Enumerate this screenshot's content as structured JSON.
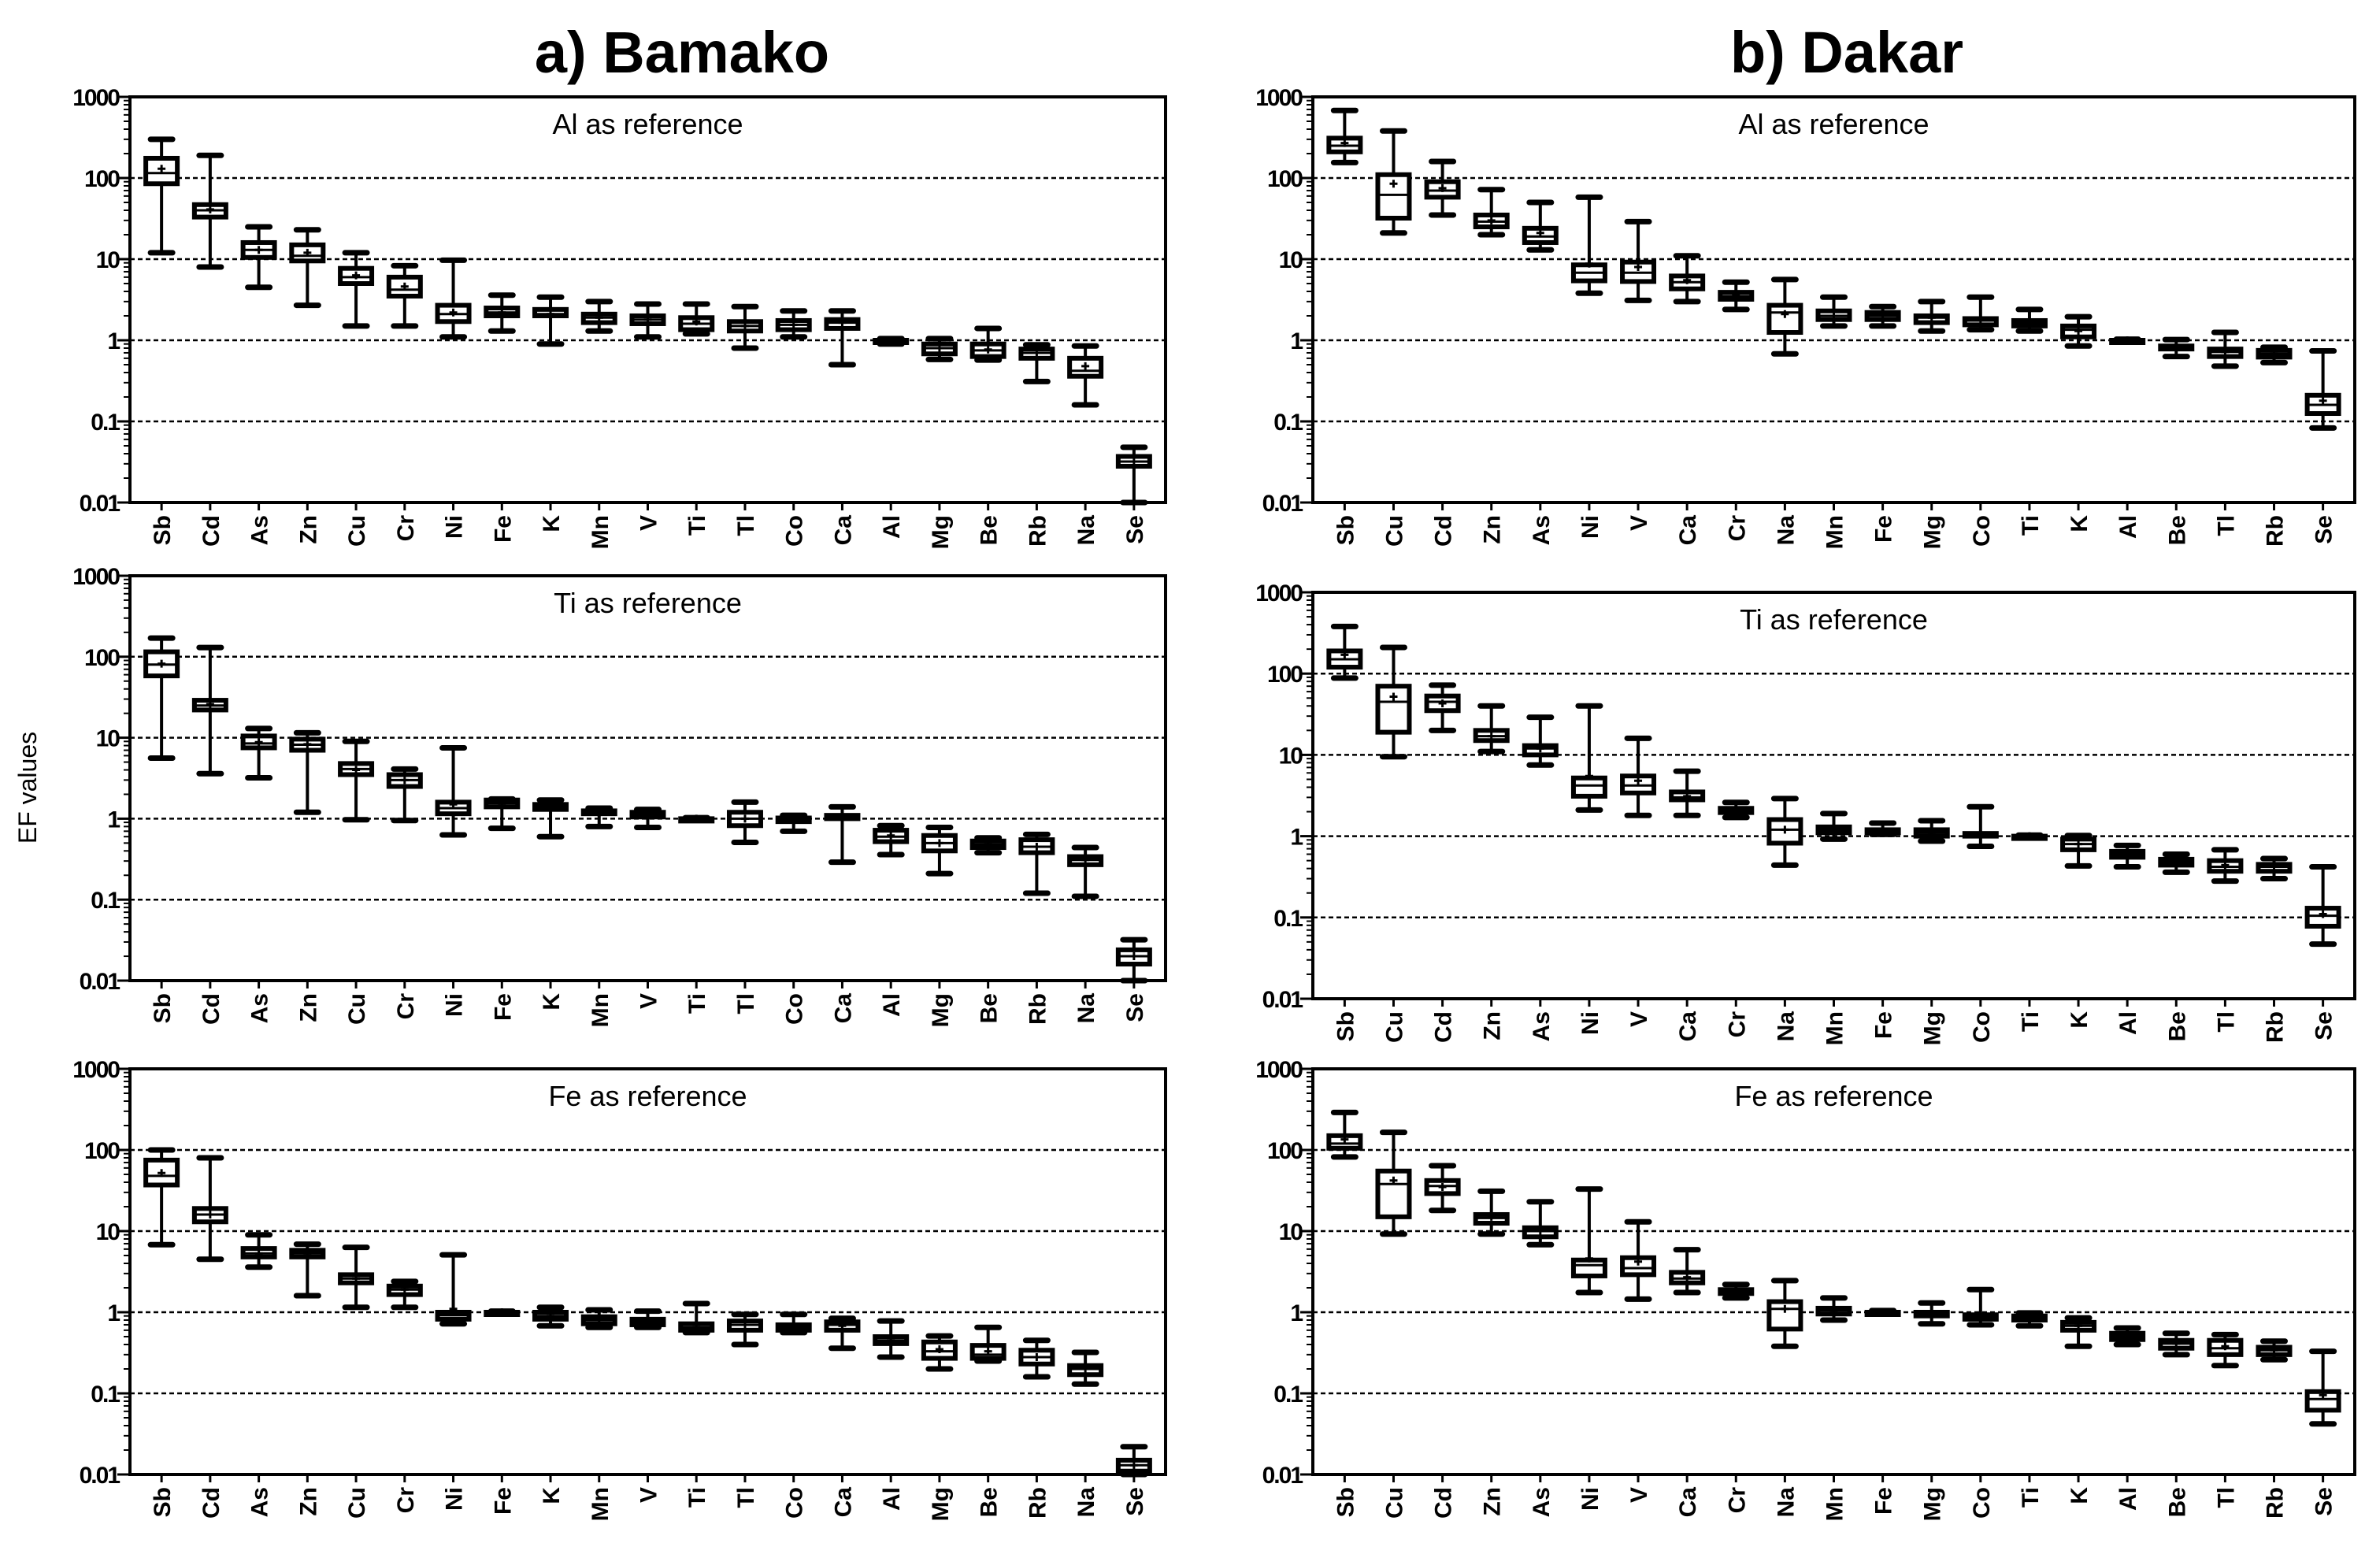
{
  "figure": {
    "titles": [
      "a) Bamako",
      "b) Dakar"
    ],
    "ylabel": "EF values",
    "yticks": [
      "1000",
      "100",
      "10",
      "1",
      "0.1",
      "0.01"
    ],
    "colors": {
      "box": "#000000",
      "fill": "#ffffff",
      "grid": "#000000"
    }
  },
  "chart_data": [
    {
      "type": "boxplot",
      "site": "Bamako",
      "title": "Al as reference",
      "ylabel": "EF values",
      "yscale": "log",
      "ylim": [
        0.01,
        1000
      ],
      "grid": "dashed at 0.1, 1, 10, 100",
      "stats_order": [
        "min",
        "q1",
        "median",
        "q3",
        "max",
        "mean"
      ],
      "categories": [
        "Sb",
        "Cd",
        "As",
        "Zn",
        "Cu",
        "Cr",
        "Ni",
        "Fe",
        "K",
        "Mn",
        "V",
        "Ti",
        "Tl",
        "Co",
        "Ca",
        "Al",
        "Mg",
        "Be",
        "Rb",
        "Na",
        "Se"
      ],
      "values": [
        [
          12,
          85,
          115,
          175,
          300,
          130
        ],
        [
          8,
          33,
          40,
          47,
          190,
          41
        ],
        [
          4.5,
          10.5,
          13,
          16,
          25,
          13
        ],
        [
          2.7,
          9.5,
          11,
          15,
          23,
          12
        ],
        [
          1.5,
          5,
          6,
          7.7,
          12,
          6.3
        ],
        [
          1.5,
          3.5,
          4.2,
          6,
          8.3,
          4.6
        ],
        [
          1.1,
          1.7,
          2.1,
          2.7,
          9.7,
          2.2
        ],
        [
          1.3,
          2.0,
          2.2,
          2.5,
          3.6,
          2.2
        ],
        [
          0.9,
          2.0,
          2.1,
          2.4,
          3.4,
          2.1
        ],
        [
          1.3,
          1.65,
          1.9,
          2.1,
          3.0,
          1.9
        ],
        [
          1.1,
          1.6,
          1.8,
          2.0,
          2.8,
          1.8
        ],
        [
          1.2,
          1.35,
          1.6,
          1.9,
          2.8,
          1.7
        ],
        [
          0.8,
          1.3,
          1.5,
          1.7,
          2.6,
          1.5
        ],
        [
          1.1,
          1.35,
          1.55,
          1.75,
          2.3,
          1.55
        ],
        [
          0.5,
          1.4,
          1.65,
          1.8,
          2.3,
          1.65
        ],
        [
          0.9,
          1,
          1,
          1,
          1.05,
          1
        ],
        [
          0.58,
          0.68,
          0.8,
          0.9,
          1.05,
          0.8
        ],
        [
          0.57,
          0.63,
          0.75,
          0.9,
          1.4,
          0.77
        ],
        [
          0.31,
          0.6,
          0.7,
          0.78,
          0.88,
          0.7
        ],
        [
          0.16,
          0.36,
          0.42,
          0.6,
          0.85,
          0.48
        ],
        [
          0.01,
          0.028,
          0.032,
          0.037,
          0.048,
          0.032
        ]
      ]
    },
    {
      "type": "boxplot",
      "site": "Dakar",
      "title": "Al as reference",
      "ylabel": "",
      "yscale": "log",
      "ylim": [
        0.01,
        1000
      ],
      "grid": "dashed at 0.1, 1, 10, 100",
      "stats_order": [
        "min",
        "q1",
        "median",
        "q3",
        "max",
        "mean"
      ],
      "categories": [
        "Sb",
        "Cu",
        "Cd",
        "Zn",
        "As",
        "Ni",
        "V",
        "Ca",
        "Cr",
        "Na",
        "Mn",
        "Fe",
        "Mg",
        "Co",
        "Ti",
        "K",
        "Al",
        "Be",
        "Tl",
        "Rb",
        "Se"
      ],
      "values": [
        [
          155,
          210,
          250,
          310,
          680,
          270
        ],
        [
          21,
          32,
          62,
          110,
          380,
          85
        ],
        [
          35,
          58,
          70,
          90,
          160,
          75
        ],
        [
          20,
          25,
          29,
          35,
          72,
          30
        ],
        [
          13,
          16,
          19,
          24,
          50,
          21
        ],
        [
          3.8,
          5.4,
          6.8,
          8.5,
          58,
          8.8
        ],
        [
          3.1,
          5.3,
          6.8,
          9.2,
          29,
          8
        ],
        [
          3.0,
          4.3,
          5.2,
          6.2,
          11,
          5.5
        ],
        [
          2.4,
          3.2,
          3.5,
          3.9,
          5.2,
          3.6
        ],
        [
          0.68,
          1.25,
          2.2,
          2.7,
          5.6,
          2.1
        ],
        [
          1.5,
          1.8,
          2.0,
          2.3,
          3.4,
          2.0
        ],
        [
          1.5,
          1.8,
          2.0,
          2.2,
          2.6,
          2.0
        ],
        [
          1.3,
          1.65,
          1.9,
          2.0,
          3.0,
          1.9
        ],
        [
          1.35,
          1.55,
          1.75,
          1.85,
          3.4,
          1.8
        ],
        [
          1.3,
          1.5,
          1.6,
          1.75,
          2.4,
          1.6
        ],
        [
          0.85,
          1.1,
          1.35,
          1.5,
          1.95,
          1.3
        ],
        [
          0.95,
          1,
          1,
          1,
          1.03,
          1
        ],
        [
          0.63,
          0.78,
          0.82,
          0.85,
          1.02,
          0.82
        ],
        [
          0.48,
          0.63,
          0.72,
          0.78,
          1.25,
          0.72
        ],
        [
          0.53,
          0.62,
          0.68,
          0.75,
          0.82,
          0.68
        ],
        [
          0.083,
          0.125,
          0.16,
          0.21,
          0.74,
          0.18
        ]
      ]
    },
    {
      "type": "boxplot",
      "site": "Bamako",
      "title": "Ti as reference",
      "ylabel": "EF values",
      "yscale": "log",
      "ylim": [
        0.01,
        1000
      ],
      "grid": "dashed at 0.1, 1, 10, 100",
      "stats_order": [
        "min",
        "q1",
        "median",
        "q3",
        "max",
        "mean"
      ],
      "categories": [
        "Sb",
        "Cd",
        "As",
        "Zn",
        "Cu",
        "Cr",
        "Ni",
        "Fe",
        "K",
        "Mn",
        "V",
        "Ti",
        "Tl",
        "Co",
        "Ca",
        "Al",
        "Mg",
        "Be",
        "Rb",
        "Na",
        "Se"
      ],
      "values": [
        [
          5.6,
          58,
          80,
          115,
          170,
          82
        ],
        [
          3.6,
          22,
          25,
          29,
          130,
          26
        ],
        [
          3.2,
          7.5,
          8.5,
          10.5,
          13,
          8.8
        ],
        [
          1.2,
          7,
          8.2,
          9.6,
          11.5,
          8.3
        ],
        [
          0.97,
          3.5,
          4.1,
          4.8,
          9,
          4
        ],
        [
          0.95,
          2.5,
          3.0,
          3.5,
          4.1,
          3.0
        ],
        [
          0.63,
          1.15,
          1.35,
          1.6,
          7.5,
          1.5
        ],
        [
          0.76,
          1.4,
          1.55,
          1.7,
          1.75,
          1.55
        ],
        [
          0.6,
          1.3,
          1.4,
          1.5,
          1.7,
          1.4
        ],
        [
          0.8,
          1.15,
          1.2,
          1.25,
          1.35,
          1.2
        ],
        [
          0.78,
          1.05,
          1.1,
          1.2,
          1.3,
          1.12
        ],
        [
          0.97,
          1,
          1,
          1,
          1.03,
          1
        ],
        [
          0.51,
          0.82,
          1.0,
          1.2,
          1.6,
          1.0
        ],
        [
          0.7,
          0.92,
          0.98,
          1.02,
          1.1,
          0.97
        ],
        [
          0.29,
          1.0,
          1.05,
          1.1,
          1.4,
          1.0
        ],
        [
          0.36,
          0.52,
          0.6,
          0.72,
          0.82,
          0.62
        ],
        [
          0.21,
          0.4,
          0.5,
          0.62,
          0.78,
          0.5
        ],
        [
          0.38,
          0.44,
          0.48,
          0.53,
          0.58,
          0.48
        ],
        [
          0.12,
          0.38,
          0.45,
          0.55,
          0.64,
          0.45
        ],
        [
          0.11,
          0.27,
          0.31,
          0.34,
          0.44,
          0.31
        ],
        [
          0.01,
          0.016,
          0.02,
          0.024,
          0.032,
          0.02
        ]
      ]
    },
    {
      "type": "boxplot",
      "site": "Dakar",
      "title": "Ti as reference",
      "ylabel": "",
      "yscale": "log",
      "ylim": [
        0.01,
        1000
      ],
      "grid": "dashed at 0.1, 1, 10, 100",
      "stats_order": [
        "min",
        "q1",
        "median",
        "q3",
        "max",
        "mean"
      ],
      "categories": [
        "Sb",
        "Cu",
        "Cd",
        "Zn",
        "As",
        "Ni",
        "V",
        "Ca",
        "Cr",
        "Na",
        "Mn",
        "Fe",
        "Mg",
        "Co",
        "Ti",
        "K",
        "Al",
        "Be",
        "Tl",
        "Rb",
        "Se"
      ],
      "values": [
        [
          88,
          120,
          150,
          190,
          380,
          170
        ],
        [
          9.5,
          19,
          45,
          70,
          210,
          52
        ],
        [
          20,
          35,
          45,
          53,
          72,
          43
        ],
        [
          11,
          15,
          17,
          20,
          40,
          17
        ],
        [
          7.5,
          10,
          12,
          13,
          29,
          12
        ],
        [
          2.1,
          3.1,
          4.2,
          5.2,
          40,
          5.5
        ],
        [
          1.8,
          3.4,
          4.2,
          5.5,
          16,
          4.8
        ],
        [
          1.8,
          2.8,
          3.0,
          3.5,
          6.3,
          3.1
        ],
        [
          1.7,
          1.95,
          2.05,
          2.2,
          2.6,
          2.05
        ],
        [
          0.44,
          0.82,
          1.2,
          1.6,
          2.9,
          1.2
        ],
        [
          0.92,
          1.1,
          1.2,
          1.3,
          1.9,
          1.2
        ],
        [
          1.05,
          1.1,
          1.15,
          1.2,
          1.45,
          1.15
        ],
        [
          0.87,
          1.0,
          1.1,
          1.2,
          1.55,
          1.1
        ],
        [
          0.75,
          1.0,
          1.05,
          1.08,
          2.3,
          1.05
        ],
        [
          0.97,
          1,
          1,
          1,
          1.03,
          1
        ],
        [
          0.43,
          0.68,
          0.8,
          0.92,
          1.02,
          0.8
        ],
        [
          0.42,
          0.55,
          0.6,
          0.65,
          0.77,
          0.6
        ],
        [
          0.36,
          0.44,
          0.48,
          0.52,
          0.6,
          0.48
        ],
        [
          0.28,
          0.37,
          0.42,
          0.5,
          0.68,
          0.44
        ],
        [
          0.3,
          0.37,
          0.42,
          0.45,
          0.53,
          0.42
        ],
        [
          0.047,
          0.078,
          0.105,
          0.13,
          0.42,
          0.11
        ]
      ]
    },
    {
      "type": "boxplot",
      "site": "Bamako",
      "title": "Fe as reference",
      "ylabel": "EF values",
      "yscale": "log",
      "ylim": [
        0.01,
        1000
      ],
      "grid": "dashed at 0.1, 1, 10, 100",
      "stats_order": [
        "min",
        "q1",
        "median",
        "q3",
        "max",
        "mean"
      ],
      "categories": [
        "Sb",
        "Cd",
        "As",
        "Zn",
        "Cu",
        "Cr",
        "Ni",
        "Fe",
        "K",
        "Mn",
        "V",
        "Ti",
        "Tl",
        "Co",
        "Ca",
        "Al",
        "Mg",
        "Be",
        "Rb",
        "Na",
        "Se"
      ],
      "values": [
        [
          6.8,
          37,
          48,
          75,
          100,
          52
        ],
        [
          4.5,
          13,
          16,
          19,
          80,
          16
        ],
        [
          3.6,
          4.8,
          5.3,
          6.1,
          9,
          5.3
        ],
        [
          1.6,
          4.8,
          5.3,
          5.8,
          6.9,
          5.3
        ],
        [
          1.15,
          2.3,
          2.6,
          2.9,
          6.3,
          2.6
        ],
        [
          1.15,
          1.65,
          1.9,
          2.1,
          2.4,
          1.9
        ],
        [
          0.72,
          0.82,
          0.92,
          1.0,
          5.1,
          1.1
        ],
        [
          0.95,
          1,
          1,
          1,
          1.03,
          1
        ],
        [
          0.68,
          0.82,
          0.9,
          1.0,
          1.15,
          0.9
        ],
        [
          0.65,
          0.72,
          0.8,
          0.88,
          1.07,
          0.8
        ],
        [
          0.65,
          0.7,
          0.77,
          0.82,
          1.03,
          0.77
        ],
        [
          0.56,
          0.6,
          0.65,
          0.72,
          1.28,
          0.65
        ],
        [
          0.4,
          0.6,
          0.7,
          0.78,
          0.94,
          0.7
        ],
        [
          0.56,
          0.6,
          0.65,
          0.7,
          0.94,
          0.65
        ],
        [
          0.36,
          0.6,
          0.7,
          0.76,
          0.84,
          0.68
        ],
        [
          0.28,
          0.41,
          0.45,
          0.5,
          0.78,
          0.45
        ],
        [
          0.2,
          0.27,
          0.33,
          0.43,
          0.51,
          0.35
        ],
        [
          0.25,
          0.27,
          0.3,
          0.39,
          0.65,
          0.33
        ],
        [
          0.16,
          0.23,
          0.28,
          0.34,
          0.45,
          0.28
        ],
        [
          0.13,
          0.17,
          0.2,
          0.22,
          0.32,
          0.2
        ],
        [
          0.01,
          0.011,
          0.013,
          0.015,
          0.022,
          0.013
        ]
      ]
    },
    {
      "type": "boxplot",
      "site": "Dakar",
      "title": "Fe as reference",
      "ylabel": "",
      "yscale": "log",
      "ylim": [
        0.01,
        1000
      ],
      "grid": "dashed at 0.1, 1, 10, 100",
      "stats_order": [
        "min",
        "q1",
        "median",
        "q3",
        "max",
        "mean"
      ],
      "categories": [
        "Sb",
        "Cu",
        "Cd",
        "Zn",
        "As",
        "Ni",
        "V",
        "Ca",
        "Cr",
        "Na",
        "Mn",
        "Fe",
        "Mg",
        "Co",
        "Ti",
        "K",
        "Al",
        "Be",
        "Tl",
        "Rb",
        "Se"
      ],
      "values": [
        [
          82,
          105,
          120,
          150,
          290,
          135
        ],
        [
          9.2,
          15,
          38,
          55,
          165,
          42
        ],
        [
          18,
          29,
          36,
          42,
          64,
          35
        ],
        [
          9.2,
          12.5,
          14.5,
          16,
          31,
          15
        ],
        [
          6.8,
          8.5,
          10,
          11,
          23,
          10
        ],
        [
          1.75,
          2.8,
          3.8,
          4.4,
          33,
          4.6
        ],
        [
          1.45,
          2.9,
          3.5,
          4.7,
          13,
          4.2
        ],
        [
          1.75,
          2.3,
          2.6,
          3.1,
          5.9,
          2.7
        ],
        [
          1.5,
          1.7,
          1.8,
          1.9,
          2.2,
          1.8
        ],
        [
          0.38,
          0.62,
          1.1,
          1.35,
          2.45,
          1.1
        ],
        [
          0.8,
          0.95,
          1.05,
          1.12,
          1.5,
          1.05
        ],
        [
          0.95,
          1,
          1,
          1,
          1.05,
          1
        ],
        [
          0.72,
          0.9,
          0.97,
          1.0,
          1.3,
          0.97
        ],
        [
          0.7,
          0.82,
          0.9,
          0.93,
          1.9,
          0.9
        ],
        [
          0.68,
          0.8,
          0.85,
          0.9,
          0.98,
          0.85
        ],
        [
          0.38,
          0.6,
          0.68,
          0.75,
          0.85,
          0.68
        ],
        [
          0.4,
          0.46,
          0.5,
          0.55,
          0.64,
          0.5
        ],
        [
          0.3,
          0.36,
          0.41,
          0.45,
          0.55,
          0.41
        ],
        [
          0.22,
          0.3,
          0.36,
          0.45,
          0.53,
          0.38
        ],
        [
          0.26,
          0.3,
          0.34,
          0.37,
          0.44,
          0.34
        ],
        [
          0.042,
          0.062,
          0.085,
          0.105,
          0.33,
          0.095
        ]
      ]
    }
  ]
}
